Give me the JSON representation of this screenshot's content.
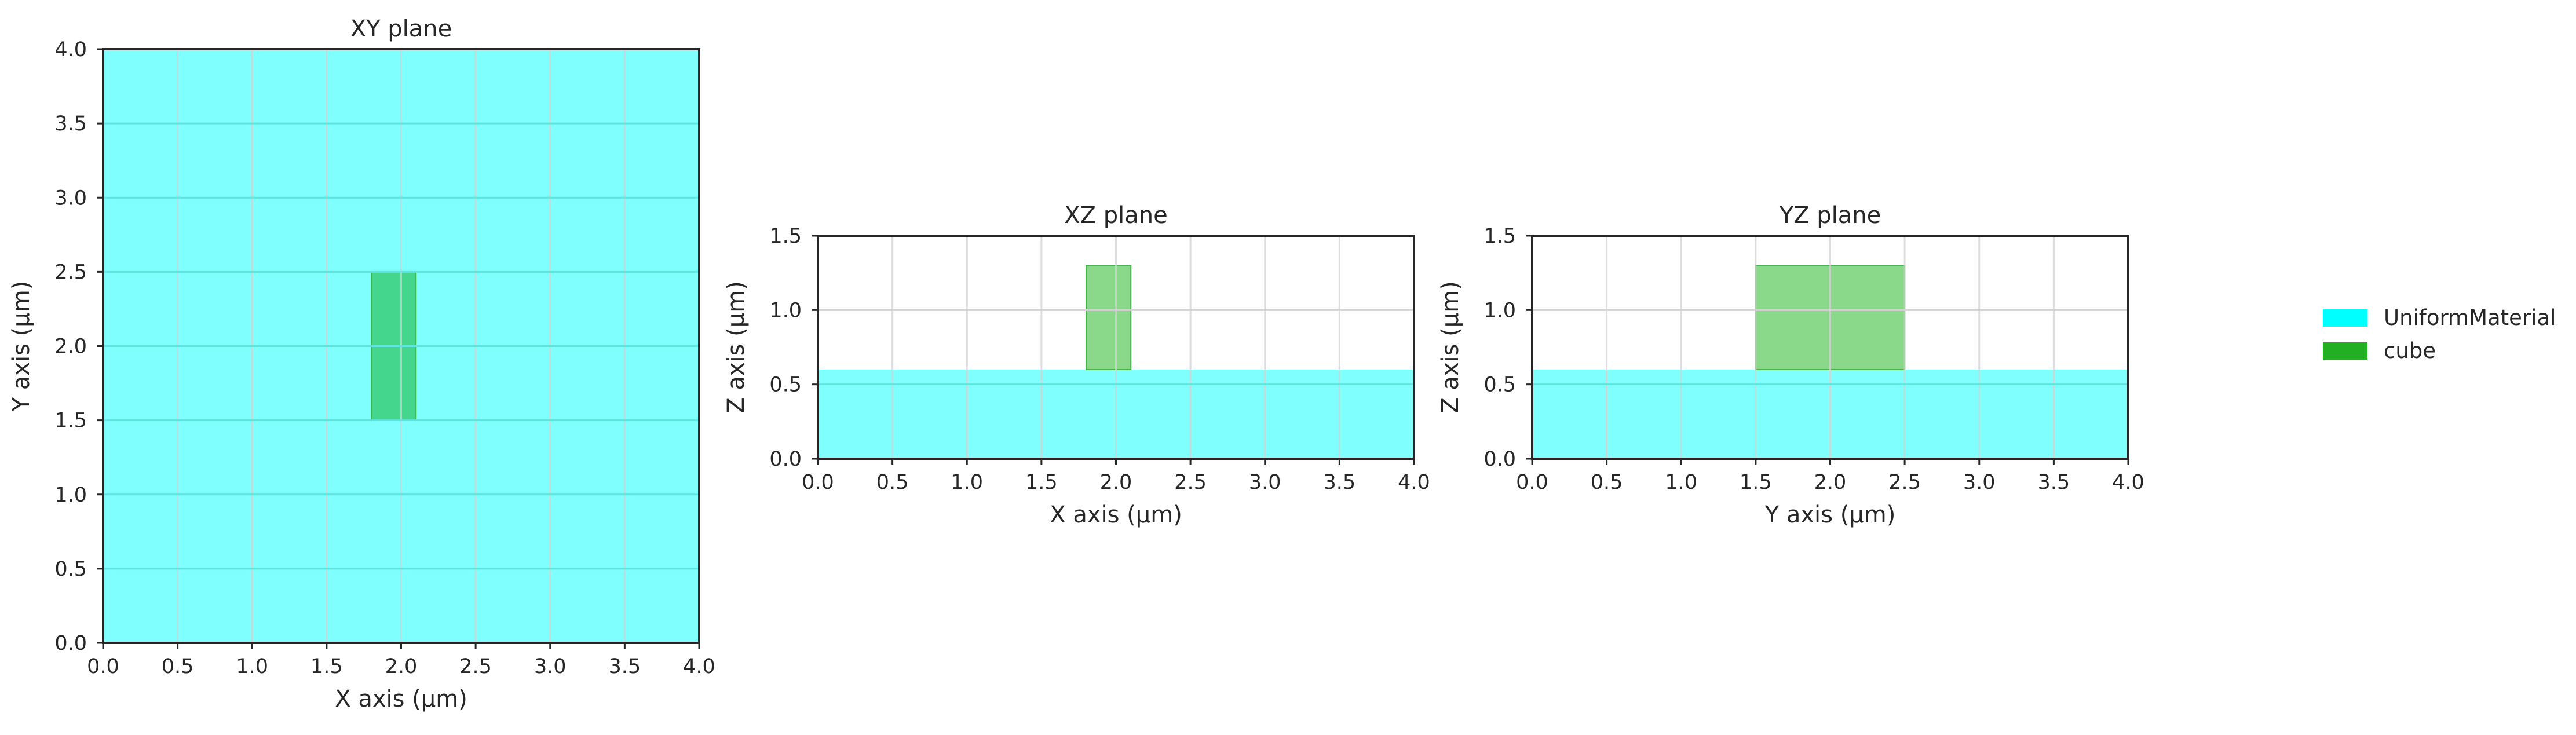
{
  "chart_data": [
    {
      "type": "area",
      "title": "XY plane",
      "xlabel": "X axis (µm)",
      "ylabel": "Y axis (µm)",
      "xlim": [
        0,
        4
      ],
      "ylim": [
        0,
        4
      ],
      "xticks": [
        "0.0",
        "0.5",
        "1.0",
        "1.5",
        "2.0",
        "2.5",
        "3.0",
        "3.5",
        "4.0"
      ],
      "yticks": [
        "0.0",
        "0.5",
        "1.0",
        "1.5",
        "2.0",
        "2.5",
        "3.0",
        "3.5",
        "4.0"
      ],
      "grid": true,
      "regions": [
        {
          "name": "UniformMaterial",
          "x": [
            0,
            4
          ],
          "y": [
            0,
            4
          ]
        },
        {
          "name": "cube",
          "x": [
            1.8,
            2.1
          ],
          "y": [
            1.5,
            2.5
          ]
        }
      ]
    },
    {
      "type": "area",
      "title": "XZ plane",
      "xlabel": "X axis (µm)",
      "ylabel": "Z axis (µm)",
      "xlim": [
        0,
        4
      ],
      "ylim": [
        0,
        1.5
      ],
      "xticks": [
        "0.0",
        "0.5",
        "1.0",
        "1.5",
        "2.0",
        "2.5",
        "3.0",
        "3.5",
        "4.0"
      ],
      "yticks": [
        "0.0",
        "0.5",
        "1.0",
        "1.5"
      ],
      "grid": true,
      "regions": [
        {
          "name": "UniformMaterial",
          "x": [
            0,
            4
          ],
          "y": [
            0,
            0.6
          ]
        },
        {
          "name": "cube",
          "x": [
            1.8,
            2.1
          ],
          "y": [
            0.6,
            1.3
          ]
        }
      ]
    },
    {
      "type": "area",
      "title": "YZ plane",
      "xlabel": "Y axis (µm)",
      "ylabel": "Z axis (µm)",
      "xlim": [
        0,
        4
      ],
      "ylim": [
        0,
        1.5
      ],
      "xticks": [
        "0.0",
        "0.5",
        "1.0",
        "1.5",
        "2.0",
        "2.5",
        "3.0",
        "3.5",
        "4.0"
      ],
      "yticks": [
        "0.0",
        "0.5",
        "1.0",
        "1.5"
      ],
      "grid": true,
      "regions": [
        {
          "name": "UniformMaterial",
          "x": [
            0,
            4
          ],
          "y": [
            0,
            0.6
          ]
        },
        {
          "name": "cube",
          "x": [
            1.5,
            2.5
          ],
          "y": [
            0.6,
            1.3
          ]
        }
      ]
    }
  ],
  "legend": {
    "placement": "right",
    "entries": [
      {
        "label": "UniformMaterial",
        "color": "#00ffff"
      },
      {
        "label": "cube",
        "color": "#22b022"
      }
    ]
  },
  "colors": {
    "UniformMaterial": "#00ffff",
    "cube": "#22b022",
    "UniformMaterial_fill": "#80ffff",
    "cube_fill_on_material": "#44d68c",
    "cube_fill": "#8ad88a",
    "grid": "#d2d2d2",
    "grid_on_material": "#5fe4de"
  }
}
